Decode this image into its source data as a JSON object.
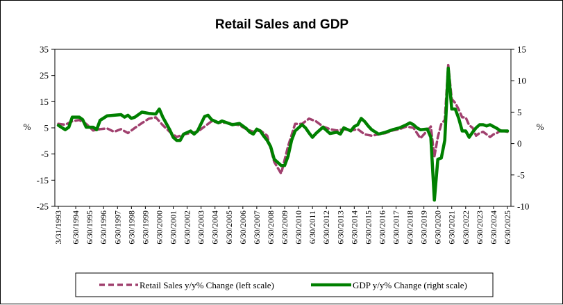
{
  "chart_data": {
    "type": "line",
    "title": "Retail Sales and GDP",
    "left_axis": {
      "unit": "%",
      "ylim": [
        -25,
        35
      ],
      "ticks": [
        -25,
        -15,
        -5,
        5,
        15,
        25,
        35
      ]
    },
    "right_axis": {
      "unit": "%",
      "ylim": [
        -10,
        15
      ],
      "ticks": [
        -10,
        -5,
        0,
        5,
        10,
        15
      ]
    },
    "x_tick_labels": [
      "3/31/1993",
      "6/30/1994",
      "6/30/1995",
      "6/30/1996",
      "6/30/1997",
      "6/30/1998",
      "6/30/1999",
      "6/30/2000",
      "6/30/2001",
      "6/30/2002",
      "6/30/2003",
      "6/30/2004",
      "6/30/2005",
      "6/30/2006",
      "6/30/2007",
      "6/30/2008",
      "6/30/2009",
      "6/30/2010",
      "6/30/2011",
      "6/30/2012",
      "6/30/2013",
      "6/30/2014",
      "6/30/2015",
      "6/30/2016",
      "6/30/2017",
      "6/30/2018",
      "6/30/2019",
      "6/30/2020",
      "6/30/2021",
      "6/30/2022",
      "6/30/2023",
      "6/30/2024",
      "6/30/2025"
    ],
    "legend_position": "bottom",
    "series": [
      {
        "name": "Retail Sales y/y% Change (left scale)",
        "axis": "left",
        "color": "#a0406e",
        "style": "dashed",
        "points": [
          [
            1993.25,
            6.5
          ],
          [
            1993.75,
            6.2
          ],
          [
            1994.25,
            7.5
          ],
          [
            1994.75,
            8.0
          ],
          [
            1995.25,
            6.5
          ],
          [
            1995.75,
            4.0
          ],
          [
            1996.25,
            4.5
          ],
          [
            1996.75,
            4.8
          ],
          [
            1997.25,
            3.5
          ],
          [
            1997.75,
            4.5
          ],
          [
            1998.25,
            3.0
          ],
          [
            1998.75,
            5.0
          ],
          [
            1999.25,
            6.8
          ],
          [
            1999.75,
            8.5
          ],
          [
            2000.25,
            9.0
          ],
          [
            2000.75,
            6.0
          ],
          [
            2001.25,
            3.5
          ],
          [
            2001.75,
            1.5
          ],
          [
            2002.25,
            2.5
          ],
          [
            2002.75,
            3.0
          ],
          [
            2003.25,
            3.5
          ],
          [
            2003.75,
            5.5
          ],
          [
            2004.25,
            7.5
          ],
          [
            2004.75,
            7.0
          ],
          [
            2005.25,
            7.0
          ],
          [
            2005.75,
            6.5
          ],
          [
            2006.25,
            6.0
          ],
          [
            2006.75,
            4.5
          ],
          [
            2007.25,
            3.5
          ],
          [
            2007.75,
            4.0
          ],
          [
            2008.25,
            2.0
          ],
          [
            2008.75,
            -8.0
          ],
          [
            2009.25,
            -12.5
          ],
          [
            2009.75,
            -2.0
          ],
          [
            2010.25,
            6.5
          ],
          [
            2010.75,
            6.5
          ],
          [
            2011.25,
            8.5
          ],
          [
            2011.75,
            7.5
          ],
          [
            2012.25,
            5.5
          ],
          [
            2012.75,
            4.5
          ],
          [
            2013.25,
            4.0
          ],
          [
            2013.75,
            4.5
          ],
          [
            2014.25,
            4.0
          ],
          [
            2014.75,
            4.5
          ],
          [
            2015.25,
            2.5
          ],
          [
            2015.75,
            2.0
          ],
          [
            2016.25,
            2.5
          ],
          [
            2016.75,
            3.0
          ],
          [
            2017.25,
            4.0
          ],
          [
            2017.75,
            4.5
          ],
          [
            2018.25,
            5.5
          ],
          [
            2018.75,
            5.0
          ],
          [
            2019.25,
            1.0
          ],
          [
            2019.75,
            4.0
          ],
          [
            2020.0,
            5.5
          ],
          [
            2020.25,
            -6.0
          ],
          [
            2020.5,
            1.5
          ],
          [
            2020.75,
            6.5
          ],
          [
            2021.0,
            8.0
          ],
          [
            2021.25,
            29.0
          ],
          [
            2021.5,
            16.0
          ],
          [
            2021.75,
            14.5
          ],
          [
            2022.0,
            12.0
          ],
          [
            2022.25,
            9.0
          ],
          [
            2022.5,
            9.0
          ],
          [
            2022.75,
            6.0
          ],
          [
            2023.0,
            5.0
          ],
          [
            2023.25,
            2.0
          ],
          [
            2023.5,
            3.0
          ],
          [
            2023.75,
            3.5
          ],
          [
            2024.0,
            2.5
          ],
          [
            2024.25,
            1.5
          ],
          [
            2024.5,
            2.5
          ],
          [
            2024.75,
            3.0
          ],
          [
            2025.0,
            4.0
          ],
          [
            2025.5,
            3.5
          ]
        ]
      },
      {
        "name": "GDP y/y% Change (right scale)",
        "axis": "right",
        "color": "#008000",
        "style": "solid",
        "points": [
          [
            1993.25,
            2.9
          ],
          [
            1993.75,
            2.2
          ],
          [
            1994.0,
            2.6
          ],
          [
            1994.25,
            4.2
          ],
          [
            1994.75,
            4.2
          ],
          [
            1995.0,
            3.8
          ],
          [
            1995.25,
            2.6
          ],
          [
            1995.75,
            2.6
          ],
          [
            1996.0,
            2.2
          ],
          [
            1996.25,
            3.7
          ],
          [
            1996.75,
            4.4
          ],
          [
            1997.25,
            4.5
          ],
          [
            1997.75,
            4.6
          ],
          [
            1998.0,
            4.2
          ],
          [
            1998.25,
            4.5
          ],
          [
            1998.5,
            4.0
          ],
          [
            1998.75,
            4.2
          ],
          [
            1999.25,
            5.0
          ],
          [
            1999.75,
            4.8
          ],
          [
            2000.25,
            4.7
          ],
          [
            2000.5,
            5.5
          ],
          [
            2000.75,
            4.2
          ],
          [
            2001.25,
            2.2
          ],
          [
            2001.5,
            1.0
          ],
          [
            2001.75,
            0.5
          ],
          [
            2002.0,
            0.5
          ],
          [
            2002.25,
            1.5
          ],
          [
            2002.75,
            2.0
          ],
          [
            2003.0,
            1.5
          ],
          [
            2003.25,
            2.0
          ],
          [
            2003.75,
            4.3
          ],
          [
            2004.0,
            4.5
          ],
          [
            2004.25,
            3.8
          ],
          [
            2004.75,
            3.3
          ],
          [
            2005.0,
            3.6
          ],
          [
            2005.25,
            3.4
          ],
          [
            2005.75,
            3.0
          ],
          [
            2006.25,
            3.2
          ],
          [
            2006.75,
            2.4
          ],
          [
            2007.0,
            1.8
          ],
          [
            2007.25,
            1.5
          ],
          [
            2007.5,
            2.3
          ],
          [
            2007.75,
            2.0
          ],
          [
            2008.0,
            1.2
          ],
          [
            2008.25,
            0.5
          ],
          [
            2008.5,
            -0.5
          ],
          [
            2008.75,
            -2.5
          ],
          [
            2009.25,
            -3.5
          ],
          [
            2009.5,
            -3.5
          ],
          [
            2009.75,
            -2.0
          ],
          [
            2010.0,
            0.5
          ],
          [
            2010.25,
            2.0
          ],
          [
            2010.75,
            3.0
          ],
          [
            2011.0,
            2.5
          ],
          [
            2011.25,
            1.7
          ],
          [
            2011.5,
            1.0
          ],
          [
            2011.75,
            1.6
          ],
          [
            2012.25,
            2.6
          ],
          [
            2012.75,
            1.6
          ],
          [
            2013.25,
            1.8
          ],
          [
            2013.5,
            1.5
          ],
          [
            2013.75,
            2.5
          ],
          [
            2014.25,
            2.0
          ],
          [
            2014.5,
            2.7
          ],
          [
            2014.75,
            3.0
          ],
          [
            2015.0,
            4.0
          ],
          [
            2015.25,
            3.5
          ],
          [
            2015.5,
            2.8
          ],
          [
            2015.75,
            2.2
          ],
          [
            2016.25,
            1.5
          ],
          [
            2016.75,
            1.8
          ],
          [
            2017.25,
            2.2
          ],
          [
            2017.75,
            2.5
          ],
          [
            2018.25,
            3.0
          ],
          [
            2018.5,
            3.3
          ],
          [
            2018.75,
            3.0
          ],
          [
            2019.0,
            2.5
          ],
          [
            2019.25,
            2.2
          ],
          [
            2019.75,
            2.3
          ],
          [
            2020.0,
            1.0
          ],
          [
            2020.25,
            -9.0
          ],
          [
            2020.5,
            -2.5
          ],
          [
            2020.75,
            -2.3
          ],
          [
            2021.0,
            0.5
          ],
          [
            2021.25,
            12.0
          ],
          [
            2021.5,
            5.5
          ],
          [
            2021.75,
            5.5
          ],
          [
            2022.0,
            4.0
          ],
          [
            2022.25,
            2.0
          ],
          [
            2022.5,
            2.0
          ],
          [
            2022.75,
            1.0
          ],
          [
            2023.0,
            1.8
          ],
          [
            2023.25,
            2.5
          ],
          [
            2023.5,
            3.0
          ],
          [
            2023.75,
            3.0
          ],
          [
            2024.0,
            2.8
          ],
          [
            2024.25,
            3.0
          ],
          [
            2024.5,
            2.7
          ],
          [
            2024.75,
            2.4
          ],
          [
            2025.0,
            2.0
          ],
          [
            2025.25,
            2.0
          ],
          [
            2025.5,
            2.0
          ]
        ]
      }
    ]
  }
}
